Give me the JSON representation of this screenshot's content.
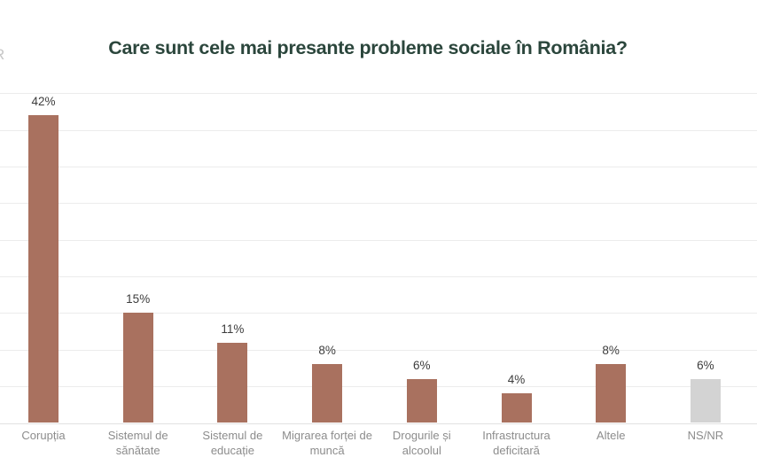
{
  "page": {
    "logo_fragment": "R"
  },
  "title": "Care sunt cele mai presante probleme sociale în România?",
  "colors": {
    "title": "#2b463c",
    "bar_default": "#a9715f",
    "bar_muted": "#d3d3d3",
    "gridline": "#ececec",
    "value_label": "#3d3d3d",
    "category_label": "#8c8c8c"
  },
  "chart_data": {
    "type": "bar",
    "title": "Care sunt cele mai presante probleme sociale în România?",
    "categories": [
      "Corupția",
      "Sistemul de sănătate",
      "Sistemul de educație",
      "Migrarea forței de muncă",
      "Drogurile și alcoolul",
      "Infrastructura deficitară",
      "Altele",
      "NS/NR"
    ],
    "tick_labels": [
      [
        "Corupția"
      ],
      [
        "Sistemul de",
        "sănătate"
      ],
      [
        "Sistemul de",
        "educație"
      ],
      [
        "Migrarea forței de",
        "muncă"
      ],
      [
        "Drogurile și",
        "alcoolul"
      ],
      [
        "Infrastructura",
        "deficitară"
      ],
      [
        "Altele"
      ],
      [
        "NS/NR"
      ]
    ],
    "values": [
      42,
      15,
      11,
      8,
      6,
      4,
      8,
      6
    ],
    "value_labels": [
      "42%",
      "15%",
      "11%",
      "8%",
      "6%",
      "4%",
      "8%",
      "6%"
    ],
    "bar_colors": [
      "#a9715f",
      "#a9715f",
      "#a9715f",
      "#a9715f",
      "#a9715f",
      "#a9715f",
      "#a9715f",
      "#d3d3d3"
    ],
    "xlabel": "",
    "ylabel": "",
    "ylim": [
      0,
      45
    ],
    "gridline_step": 5,
    "grid": true,
    "legend": false
  }
}
